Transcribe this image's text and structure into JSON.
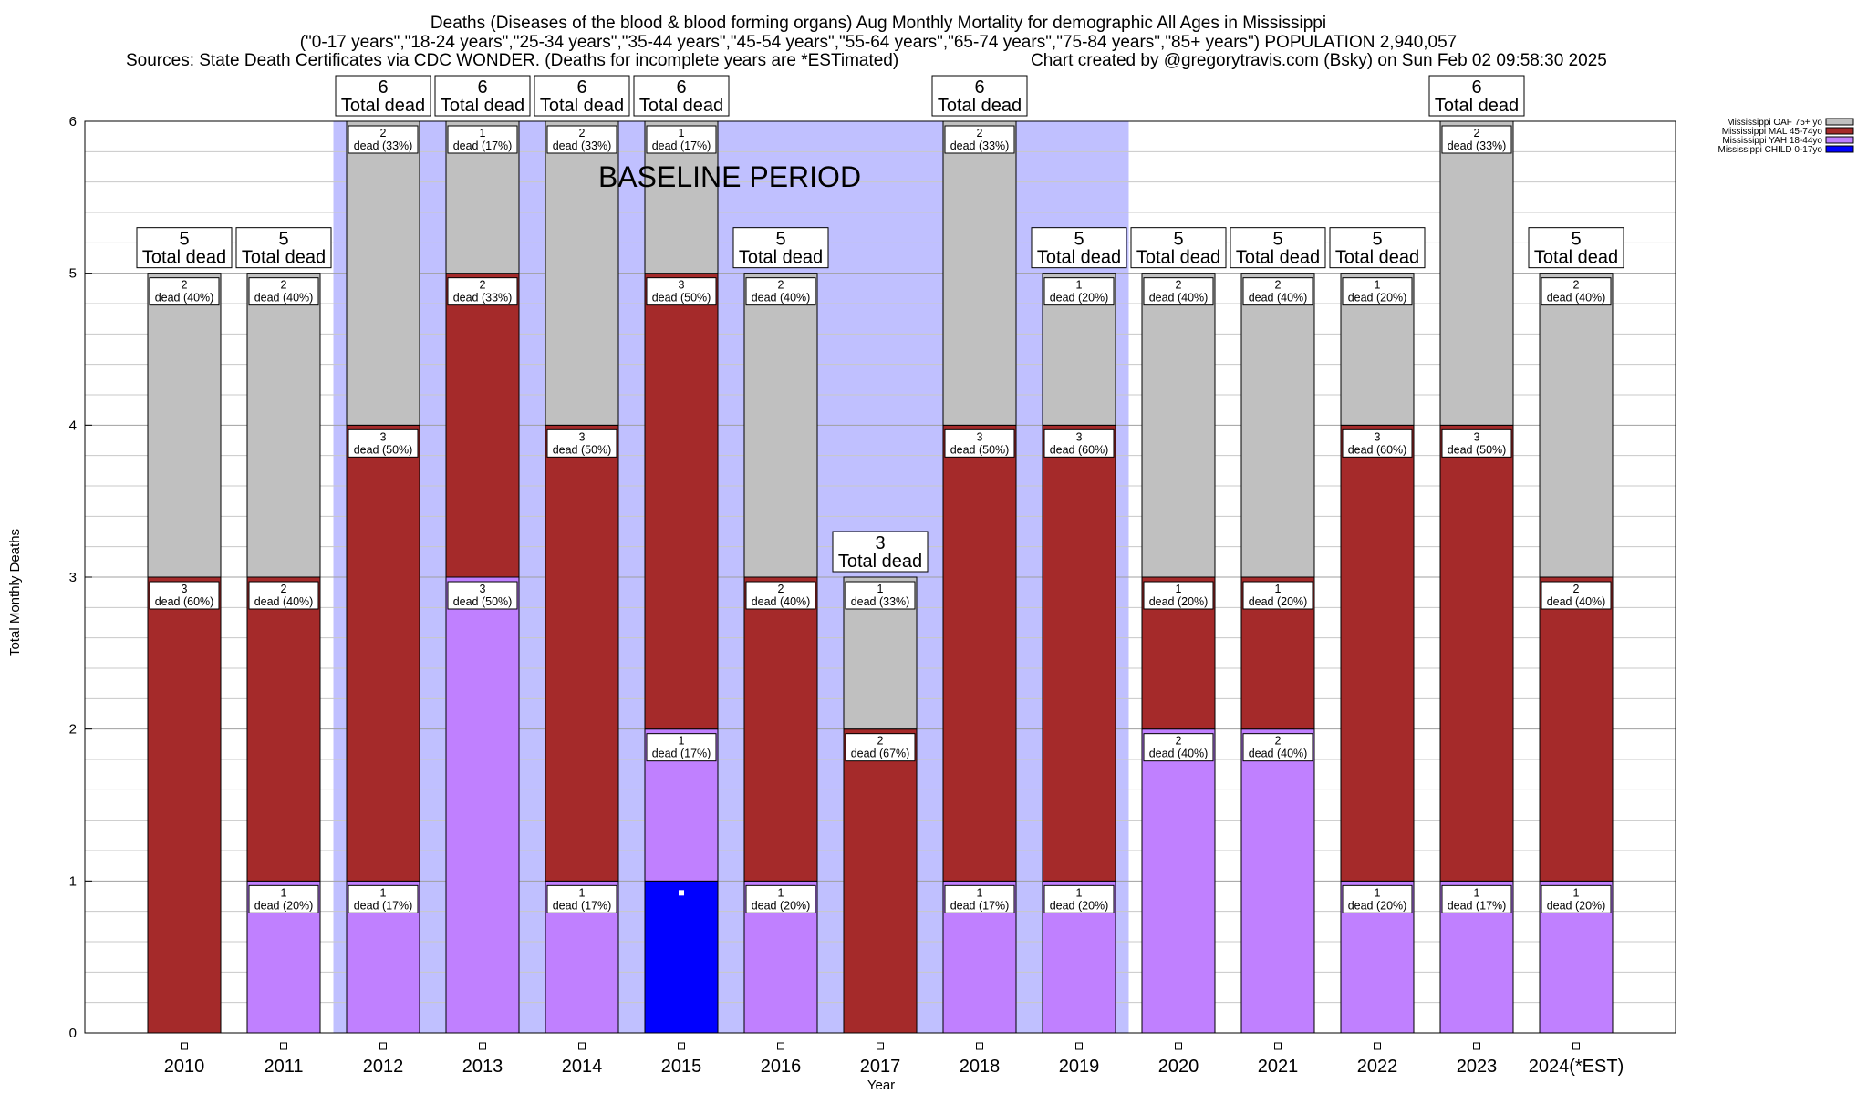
{
  "chart_data": {
    "type": "bar",
    "stacked": true,
    "title": "Deaths (Diseases of the blood & blood forming organs) Aug Monthly Mortality for demographic All Ages in Mississippi",
    "subtitle": "(\"0-17 years\",\"18-24 years\",\"25-34 years\",\"35-44 years\",\"45-54 years\",\"55-64 years\",\"65-74 years\",\"75-84 years\",\"85+ years\") POPULATION 2,940,057",
    "sources": "Sources: State Death Certificates via CDC WONDER. (Deaths for incomplete years are *ESTimated)",
    "credit": "Chart created by @gregorytravis.com (Bsky) on Sun Feb 02 09:58:30 2025",
    "xlabel": "Year",
    "ylabel": "Total Monthly Deaths",
    "ylim": [
      0,
      6
    ],
    "yticks": [
      "0",
      "1",
      "2",
      "3",
      "4",
      "5",
      "6"
    ],
    "grid": true,
    "legend_position": "top-right",
    "baseline_label": "BASELINE PERIOD",
    "baseline_years": [
      "2012",
      "2013",
      "2014",
      "2015",
      "2016",
      "2017",
      "2018",
      "2019"
    ],
    "baseline_color": "#c0c0ff",
    "total_label": "Total dead",
    "categories": [
      "2010",
      "2011",
      "2012",
      "2013",
      "2014",
      "2015",
      "2016",
      "2017",
      "2018",
      "2019",
      "2020",
      "2021",
      "2022",
      "2023",
      "2024(*EST)"
    ],
    "totals": [
      5,
      5,
      6,
      6,
      6,
      6,
      5,
      3,
      6,
      5,
      5,
      5,
      5,
      6,
      5
    ],
    "series": [
      {
        "name": "Mississippi CHILD 0-17yo",
        "color": "#0000ff",
        "values": [
          0,
          0,
          0,
          0,
          0,
          1,
          0,
          0,
          0,
          0,
          0,
          0,
          0,
          0,
          0
        ],
        "labels": [
          "",
          "",
          "",
          "",
          "",
          "",
          "",
          "",
          "",
          "",
          "",
          "",
          "",
          "",
          ""
        ]
      },
      {
        "name": "Mississippi YAH 18-44yo",
        "color": "#c080ff",
        "values": [
          0,
          1,
          1,
          3,
          1,
          1,
          1,
          0,
          1,
          1,
          2,
          2,
          1,
          1,
          1
        ],
        "labels": [
          "",
          "1 dead (20%)",
          "1 dead (17%)",
          "3 dead (50%)",
          "1 dead (17%)",
          "1 dead (17%)",
          "1 dead (20%)",
          "",
          "1 dead (17%)",
          "1 dead (20%)",
          "2 dead (40%)",
          "2 dead (40%)",
          "1 dead (20%)",
          "1 dead (17%)",
          "1 dead (20%)"
        ]
      },
      {
        "name": "Mississippi MAL 45-74yo",
        "color": "#a52a2a",
        "values": [
          3,
          2,
          3,
          2,
          3,
          3,
          2,
          2,
          3,
          3,
          1,
          1,
          3,
          3,
          2
        ],
        "labels": [
          "3 dead (60%)",
          "2 dead (40%)",
          "3 dead (50%)",
          "2 dead (33%)",
          "3 dead (50%)",
          "3 dead (50%)",
          "2 dead (40%)",
          "2 dead (67%)",
          "3 dead (50%)",
          "3 dead (60%)",
          "1 dead (20%)",
          "1 dead (20%)",
          "3 dead (60%)",
          "3 dead (50%)",
          "2 dead (40%)"
        ]
      },
      {
        "name": "Mississippi OAF 75+ yo",
        "color": "#c0c0c0",
        "values": [
          2,
          2,
          2,
          1,
          2,
          1,
          2,
          1,
          2,
          1,
          2,
          2,
          1,
          2,
          2
        ],
        "labels": [
          "2 dead (40%)",
          "2 dead (40%)",
          "2 dead (33%)",
          "1 dead (17%)",
          "2 dead (33%)",
          "1 dead (17%)",
          "2 dead (40%)",
          "1 dead (33%)",
          "2 dead (33%)",
          "1 dead (20%)",
          "2 dead (40%)",
          "2 dead (40%)",
          "1 dead (20%)",
          "2 dead (33%)",
          "2 dead (40%)"
        ]
      }
    ]
  }
}
